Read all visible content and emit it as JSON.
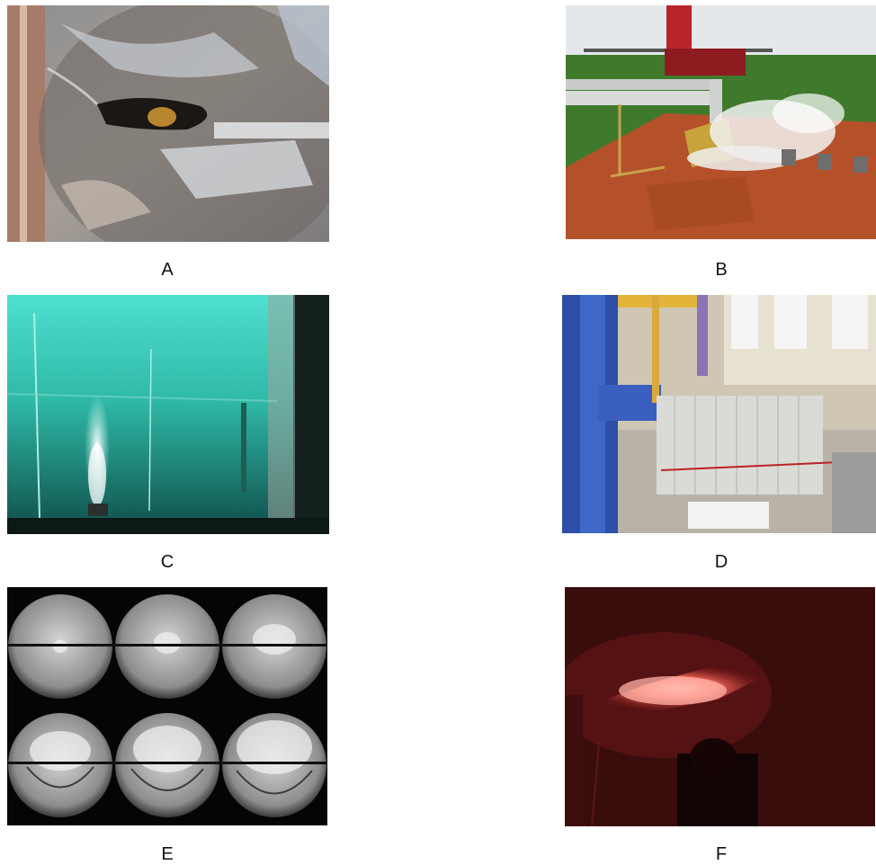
{
  "figure": {
    "panels": [
      {
        "label": "A"
      },
      {
        "label": "B"
      },
      {
        "label": "C"
      },
      {
        "label": "D"
      },
      {
        "label": "E"
      },
      {
        "label": "F"
      }
    ]
  }
}
